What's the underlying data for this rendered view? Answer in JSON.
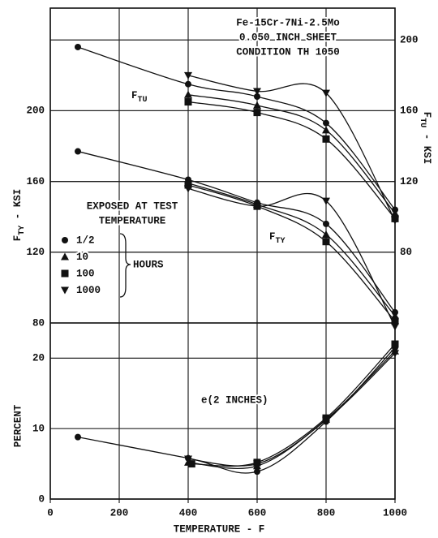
{
  "chart_data": {
    "type": "line",
    "title": [
      "Fe-15Cr-7Ni-2.5Mo",
      "0.050 INCH SHEET",
      "CONDITION TH 1050"
    ],
    "xlabel": "TEMPERATURE - F",
    "ylabel": {
      "base": "F",
      "sub": "TY",
      "suffix": " - KSI"
    },
    "y2label": {
      "base": "F",
      "sub": "TU",
      "suffix": " - KSI"
    },
    "y3label": "PERCENT",
    "legend_title": [
      "EXPOSED AT TEST",
      "TEMPERATURE"
    ],
    "legend_unit": "HOURS",
    "annotations": {
      "ftu": {
        "base": "F",
        "sub": "TU"
      },
      "fty": {
        "base": "F",
        "sub": "TY"
      },
      "elongation": "e(2 INCHES)"
    },
    "xlim": [
      0,
      1000
    ],
    "xticks": [
      0,
      200,
      400,
      600,
      800,
      1000
    ],
    "ylim": [
      80,
      258
    ],
    "yticks": [
      80,
      120,
      160,
      200
    ],
    "y2lim": [
      40,
      218
    ],
    "y2ticks": [
      80,
      120,
      160,
      200
    ],
    "y3lim": [
      0,
      25
    ],
    "y3ticks": [
      0,
      10,
      20
    ],
    "grid": true,
    "color": "#111111",
    "series": [
      {
        "name": "1/2",
        "marker": "circle",
        "axis": "y",
        "x": [
          80,
          400,
          600,
          800,
          1000
        ],
        "values": [
          177,
          161,
          148,
          136,
          86
        ]
      },
      {
        "name": "10",
        "marker": "triangle",
        "axis": "y",
        "x": [
          400,
          600,
          800,
          1000
        ],
        "values": [
          159,
          147,
          130,
          84
        ]
      },
      {
        "name": "100",
        "marker": "square",
        "axis": "y",
        "x": [
          400,
          600,
          800,
          1000
        ],
        "values": [
          158,
          146,
          126,
          81
        ]
      },
      {
        "name": "1000",
        "marker": "triangle-down",
        "axis": "y",
        "x": [
          400,
          600,
          800,
          1000
        ],
        "values": [
          156,
          146,
          149,
          78
        ]
      },
      {
        "name": "1/2",
        "marker": "circle",
        "axis": "y2",
        "x": [
          80,
          400,
          600,
          800,
          1000
        ],
        "values": [
          196,
          175,
          168,
          153,
          104
        ]
      },
      {
        "name": "10",
        "marker": "triangle",
        "axis": "y2",
        "x": [
          400,
          600,
          800,
          1000
        ],
        "values": [
          169,
          163,
          149,
          102
        ]
      },
      {
        "name": "100",
        "marker": "square",
        "axis": "y2",
        "x": [
          400,
          600,
          800,
          1000
        ],
        "values": [
          165,
          159,
          144,
          99
        ]
      },
      {
        "name": "1000",
        "marker": "triangle-down",
        "axis": "y2",
        "x": [
          400,
          600,
          800,
          1000
        ],
        "values": [
          180,
          171,
          170,
          98
        ]
      },
      {
        "name": "1/2",
        "marker": "circle",
        "axis": "y3",
        "x": [
          80,
          400,
          600,
          800,
          1000
        ],
        "values": [
          8.8,
          5.8,
          3.9,
          11,
          21.5
        ]
      },
      {
        "name": "10",
        "marker": "triangle",
        "axis": "y3",
        "x": [
          400,
          600,
          800,
          1000
        ],
        "values": [
          5.2,
          4.7,
          11.3,
          21
        ]
      },
      {
        "name": "100",
        "marker": "square",
        "axis": "y3",
        "x": [
          410,
          600,
          800,
          1000
        ],
        "values": [
          5.0,
          5.2,
          11.5,
          22
        ]
      },
      {
        "name": "1000",
        "marker": "triangle-down",
        "axis": "y3",
        "x": [
          400,
          600,
          800,
          1000
        ],
        "values": [
          5.7,
          5.0,
          11.2,
          20.7
        ]
      }
    ]
  }
}
